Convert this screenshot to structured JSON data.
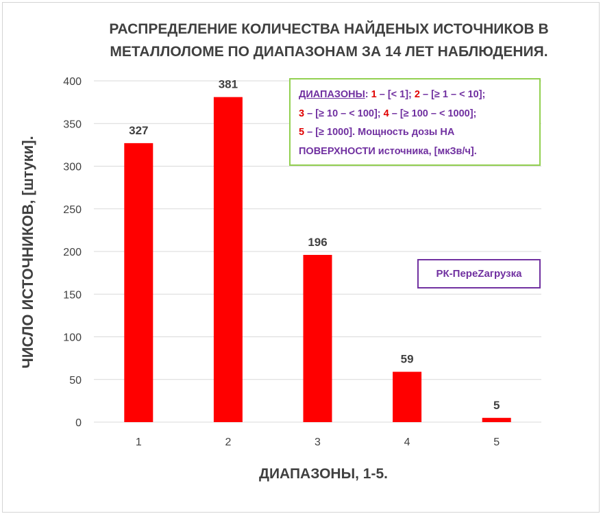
{
  "chart_data": {
    "type": "bar",
    "title": "РАСПРЕДЕЛЕНИЕ КОЛИЧЕСТВА НАЙДЕНЫХ ИСТОЧНИКОВ В МЕТАЛЛОЛОМЕ ПО ДИАПАЗОНАМ ЗА 14 ЛЕТ НАБЛЮДЕНИЯ.",
    "xlabel": "ДИАПАЗОНЫ, 1-5.",
    "ylabel": "ЧИСЛО ИСТОЧНИКОВ, [штуки].",
    "categories": [
      "1",
      "2",
      "3",
      "4",
      "5"
    ],
    "values": [
      327,
      381,
      196,
      59,
      5
    ],
    "ylim": [
      0,
      400
    ],
    "yticks": [
      0,
      50,
      100,
      150,
      200,
      250,
      300,
      350,
      400
    ],
    "grid": true,
    "bar_color": "#ff0000",
    "data_labels": true
  },
  "legend_box": {
    "heading": "ДИАПАЗОНЫ",
    "line1": [
      {
        "num": "1",
        "text": " – [< 1]; "
      },
      {
        "num": "2",
        "text": " – [≥ 1 – < 10];"
      }
    ],
    "line2": [
      {
        "num": "3",
        "text": " – [≥ 10 – < 100]; "
      },
      {
        "num": "4",
        "text": " – [≥ 100 – < 1000];"
      }
    ],
    "line3": [
      {
        "num": "5",
        "text": " – [≥ 1000]. Мощность дозы НА"
      }
    ],
    "line4": "ПОВЕРХНОСТИ источника, [мкЗв/ч].",
    "border_color": "#92d050",
    "text_color": "#7030a0",
    "number_color": "#e00000"
  },
  "credit": {
    "text": "РК-ПереZагрузка",
    "color": "#7030a0"
  }
}
